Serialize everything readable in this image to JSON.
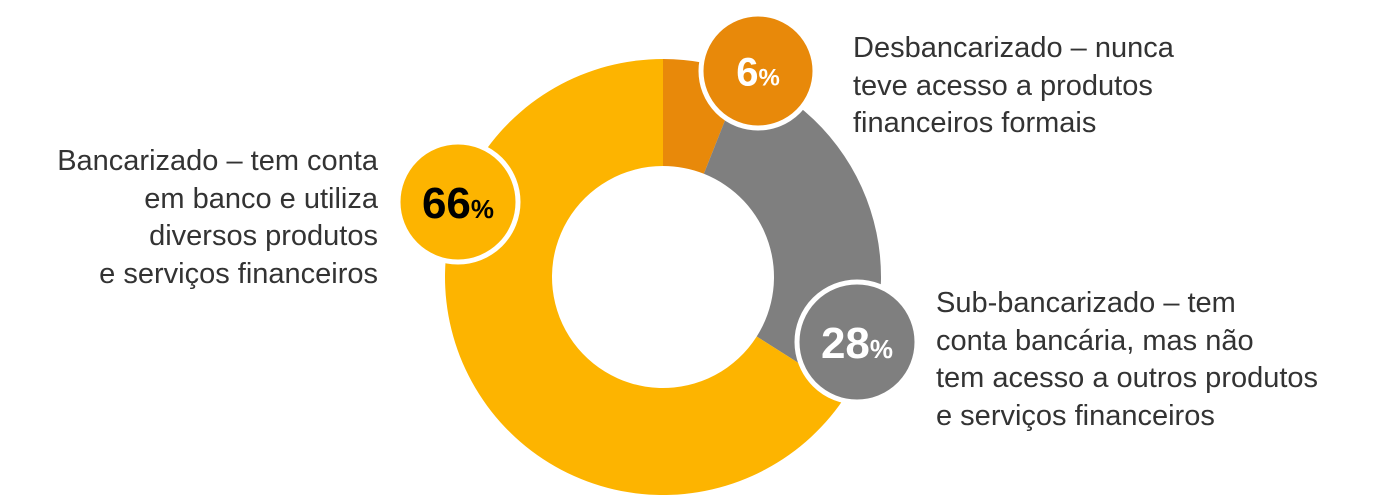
{
  "chart_data": {
    "type": "pie",
    "categories": [
      "Desbancarizado – nunca teve acesso a produtos financeiros formais",
      "Sub-bancarizado – tem conta bancária, mas não tem acesso a outros produtos e serviços financeiros",
      "Bancarizado – tem conta em banco e utiliza diversos produtos e serviços financeiros"
    ],
    "values": [
      6,
      28,
      66
    ],
    "value_unit": "%",
    "donut": true,
    "colors": [
      "#E8890A",
      "#7F7F7F",
      "#FDB400"
    ],
    "labels": [
      {
        "number": "6",
        "suffix": "%",
        "lines": [
          "Desbancarizado – nunca",
          "teve acesso a produtos",
          "financeiros formais"
        ],
        "badge_color": "#E8890A",
        "number_color": "#FFFFFF"
      },
      {
        "number": "28",
        "suffix": "%",
        "lines": [
          "Sub-bancarizado – tem",
          "conta bancária, mas não",
          "tem acesso a outros produtos",
          "e serviços financeiros"
        ],
        "badge_color": "#7F7F7F",
        "number_color": "#FFFFFF"
      },
      {
        "number": "66",
        "suffix": "%",
        "lines": [
          "Bancarizado – tem conta",
          "em banco e utiliza",
          "diversos produtos",
          "e serviços financeiros"
        ],
        "badge_color": "#FDB400",
        "number_color": "#000000"
      }
    ],
    "legend": "none",
    "grid": false
  }
}
